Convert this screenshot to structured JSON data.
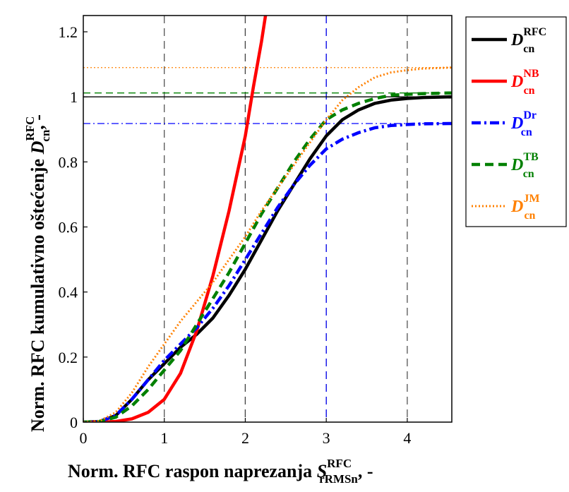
{
  "chart_data": {
    "type": "line",
    "xlabel": {
      "main": "Norm. RFC raspon naprezanja ",
      "symbol": "S",
      "sup": "RFC",
      "sub": "rRMSn",
      "suffix": ", -"
    },
    "ylabel": {
      "main": "Norm. RFC kumulativno oštećenje ",
      "symbol": "D",
      "sup": "RFC",
      "sub": "cn",
      "suffix": ", -"
    },
    "xlim": [
      0,
      4.55
    ],
    "ylim": [
      0,
      1.25
    ],
    "xticks": [
      "0",
      "1",
      "2",
      "3",
      "4"
    ],
    "yticks": [
      "0",
      "0.2",
      "0.4",
      "0.6",
      "0.8",
      "1",
      "1.2"
    ],
    "grid_vertical_x": [
      1,
      2,
      3,
      4
    ],
    "reference_lines": [
      {
        "y": 1.0,
        "color": "#000000",
        "style": "solid"
      },
      {
        "y": 1.012,
        "color": "#008000",
        "style": "dashed"
      },
      {
        "y": 0.918,
        "color": "#0000ff",
        "style": "dashdot"
      },
      {
        "y": 1.09,
        "color": "#ff8000",
        "style": "dotted"
      }
    ],
    "series": [
      {
        "name": "RFC",
        "symbol": "D",
        "sup": "RFC",
        "sub": "cn",
        "color": "#000000",
        "style": "solid",
        "x": [
          0,
          0.2,
          0.4,
          0.6,
          0.8,
          1.0,
          1.2,
          1.4,
          1.6,
          1.8,
          2.0,
          2.2,
          2.4,
          2.6,
          2.8,
          3.0,
          3.2,
          3.4,
          3.6,
          3.8,
          4.0,
          4.2,
          4.55
        ],
        "y": [
          0,
          0.002,
          0.02,
          0.07,
          0.13,
          0.18,
          0.23,
          0.27,
          0.32,
          0.39,
          0.47,
          0.56,
          0.65,
          0.73,
          0.81,
          0.88,
          0.93,
          0.96,
          0.98,
          0.99,
          0.995,
          0.998,
          1.0
        ]
      },
      {
        "name": "NB",
        "symbol": "D",
        "sup": "NB",
        "sub": "cn",
        "color": "#ff0000",
        "style": "solid",
        "x": [
          0,
          0.2,
          0.4,
          0.6,
          0.8,
          1.0,
          1.2,
          1.4,
          1.6,
          1.8,
          2.0,
          2.1,
          2.2,
          2.25
        ],
        "y": [
          0,
          0,
          0.002,
          0.01,
          0.03,
          0.07,
          0.15,
          0.28,
          0.45,
          0.65,
          0.88,
          1.03,
          1.17,
          1.25
        ]
      },
      {
        "name": "Dr",
        "symbol": "D",
        "sup": "Dr",
        "sub": "cn",
        "color": "#0000ff",
        "style": "dashdot",
        "x": [
          0,
          0.2,
          0.4,
          0.6,
          0.8,
          1.0,
          1.2,
          1.4,
          1.6,
          1.8,
          2.0,
          2.2,
          2.4,
          2.6,
          2.8,
          3.0,
          3.2,
          3.4,
          3.6,
          3.8,
          4.0,
          4.2,
          4.55
        ],
        "y": [
          0,
          0.002,
          0.02,
          0.07,
          0.13,
          0.19,
          0.24,
          0.29,
          0.35,
          0.42,
          0.5,
          0.58,
          0.66,
          0.73,
          0.79,
          0.84,
          0.87,
          0.89,
          0.905,
          0.912,
          0.915,
          0.917,
          0.918
        ]
      },
      {
        "name": "TB",
        "symbol": "D",
        "sup": "TB",
        "sub": "cn",
        "color": "#008000",
        "style": "dashed",
        "x": [
          0,
          0.2,
          0.4,
          0.6,
          0.8,
          1.0,
          1.2,
          1.4,
          1.6,
          1.8,
          2.0,
          2.2,
          2.4,
          2.6,
          2.8,
          3.0,
          3.2,
          3.4,
          3.6,
          3.8,
          4.0,
          4.2,
          4.55
        ],
        "y": [
          0,
          0.002,
          0.015,
          0.05,
          0.1,
          0.16,
          0.22,
          0.3,
          0.38,
          0.46,
          0.55,
          0.64,
          0.72,
          0.8,
          0.87,
          0.93,
          0.96,
          0.98,
          0.995,
          1.005,
          1.008,
          1.01,
          1.012
        ]
      },
      {
        "name": "JM",
        "symbol": "D",
        "sup": "JM",
        "sub": "cn",
        "color": "#ff8000",
        "style": "dotted",
        "x": [
          0,
          0.2,
          0.4,
          0.6,
          0.8,
          1.0,
          1.2,
          1.4,
          1.6,
          1.8,
          2.0,
          2.2,
          2.4,
          2.6,
          2.8,
          3.0,
          3.2,
          3.4,
          3.6,
          3.8,
          4.0,
          4.2,
          4.55
        ],
        "y": [
          0,
          0.003,
          0.03,
          0.09,
          0.17,
          0.24,
          0.31,
          0.37,
          0.43,
          0.5,
          0.57,
          0.65,
          0.72,
          0.79,
          0.86,
          0.93,
          0.99,
          1.03,
          1.06,
          1.075,
          1.082,
          1.087,
          1.09
        ]
      }
    ],
    "legend_position": "right"
  }
}
